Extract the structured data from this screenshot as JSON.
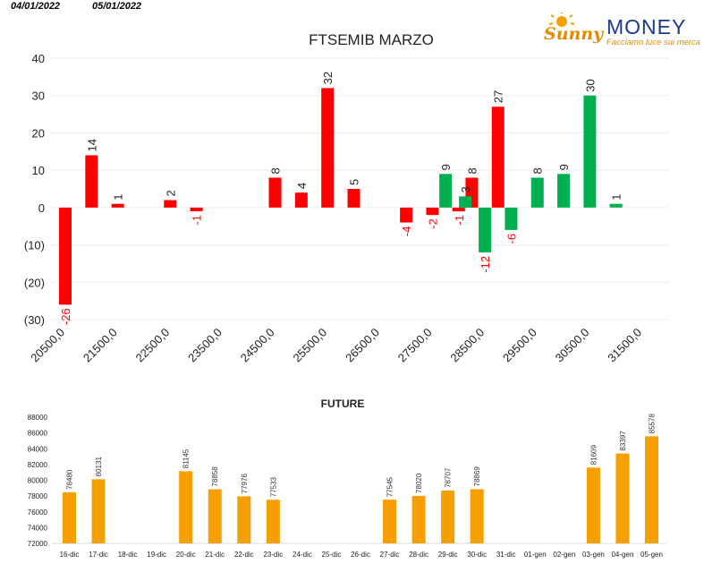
{
  "header": {
    "date1": "04/01/2022",
    "date2": "05/01/2022"
  },
  "logo": {
    "script_text": "Sunny",
    "brand_text": "MONEY",
    "tagline": "Facciamo luce sui mercati"
  },
  "colors": {
    "up": "#00b050",
    "down": "#ff0000",
    "future": "#f5a000",
    "grid": "#ececec"
  },
  "chart_data": [
    {
      "type": "bar",
      "title": "FTSEMIB MARZO",
      "yticks": [
        "40",
        "30",
        "20",
        "10",
        "0",
        "(10)",
        "(20)",
        "(30)"
      ],
      "ylim": [
        -30,
        40
      ],
      "xticks": [
        "20500,0",
        "21500,0",
        "22500,0",
        "23500,0",
        "24500,0",
        "25500,0",
        "26500,0",
        "27500,0",
        "28500,0",
        "29500,0",
        "30500,0",
        "31500,0"
      ],
      "xlim": [
        20500,
        31500
      ],
      "series": [
        {
          "color": "red",
          "points": [
            {
              "x": 20500,
              "y": -26
            },
            {
              "x": 21000,
              "y": 14
            },
            {
              "x": 21500,
              "y": 1
            },
            {
              "x": 22500,
              "y": 2
            },
            {
              "x": 23000,
              "y": -1
            },
            {
              "x": 24500,
              "y": 8
            },
            {
              "x": 25000,
              "y": 4
            },
            {
              "x": 25500,
              "y": 32
            },
            {
              "x": 26000,
              "y": 5
            },
            {
              "x": 27000,
              "y": -4
            },
            {
              "x": 27500,
              "y": -2
            },
            {
              "x": 28000,
              "y": -1
            },
            {
              "x": 28250,
              "y": 8
            },
            {
              "x": 28750,
              "y": 27
            }
          ]
        },
        {
          "color": "green",
          "points": [
            {
              "x": 27750,
              "y": 9
            },
            {
              "x": 28125,
              "y": 3
            },
            {
              "x": 28500,
              "y": -12
            },
            {
              "x": 29000,
              "y": -6
            },
            {
              "x": 29500,
              "y": 8
            },
            {
              "x": 30000,
              "y": 9
            },
            {
              "x": 30500,
              "y": 30
            },
            {
              "x": 31000,
              "y": 1
            }
          ]
        }
      ],
      "grid": true
    },
    {
      "type": "bar",
      "title": "FUTURE",
      "categories": [
        "16-dic",
        "17-dic",
        "18-dic",
        "19-dic",
        "20-dic",
        "21-dic",
        "22-dic",
        "23-dic",
        "24-dic",
        "25-dic",
        "26-dic",
        "27-dic",
        "28-dic",
        "29-dic",
        "30-dic",
        "31-dic",
        "01-gen",
        "02-gen",
        "03-gen",
        "04-gen",
        "05-gen"
      ],
      "values": [
        78480,
        80131,
        null,
        null,
        81145,
        78858,
        77976,
        77533,
        null,
        null,
        null,
        77545,
        78020,
        78707,
        78869,
        null,
        null,
        null,
        81609,
        83397,
        85578
      ],
      "yticks": [
        "88000",
        "86000",
        "84000",
        "82000",
        "80000",
        "78000",
        "76000",
        "74000",
        "72000"
      ],
      "ylim": [
        72000,
        88000
      ]
    }
  ]
}
